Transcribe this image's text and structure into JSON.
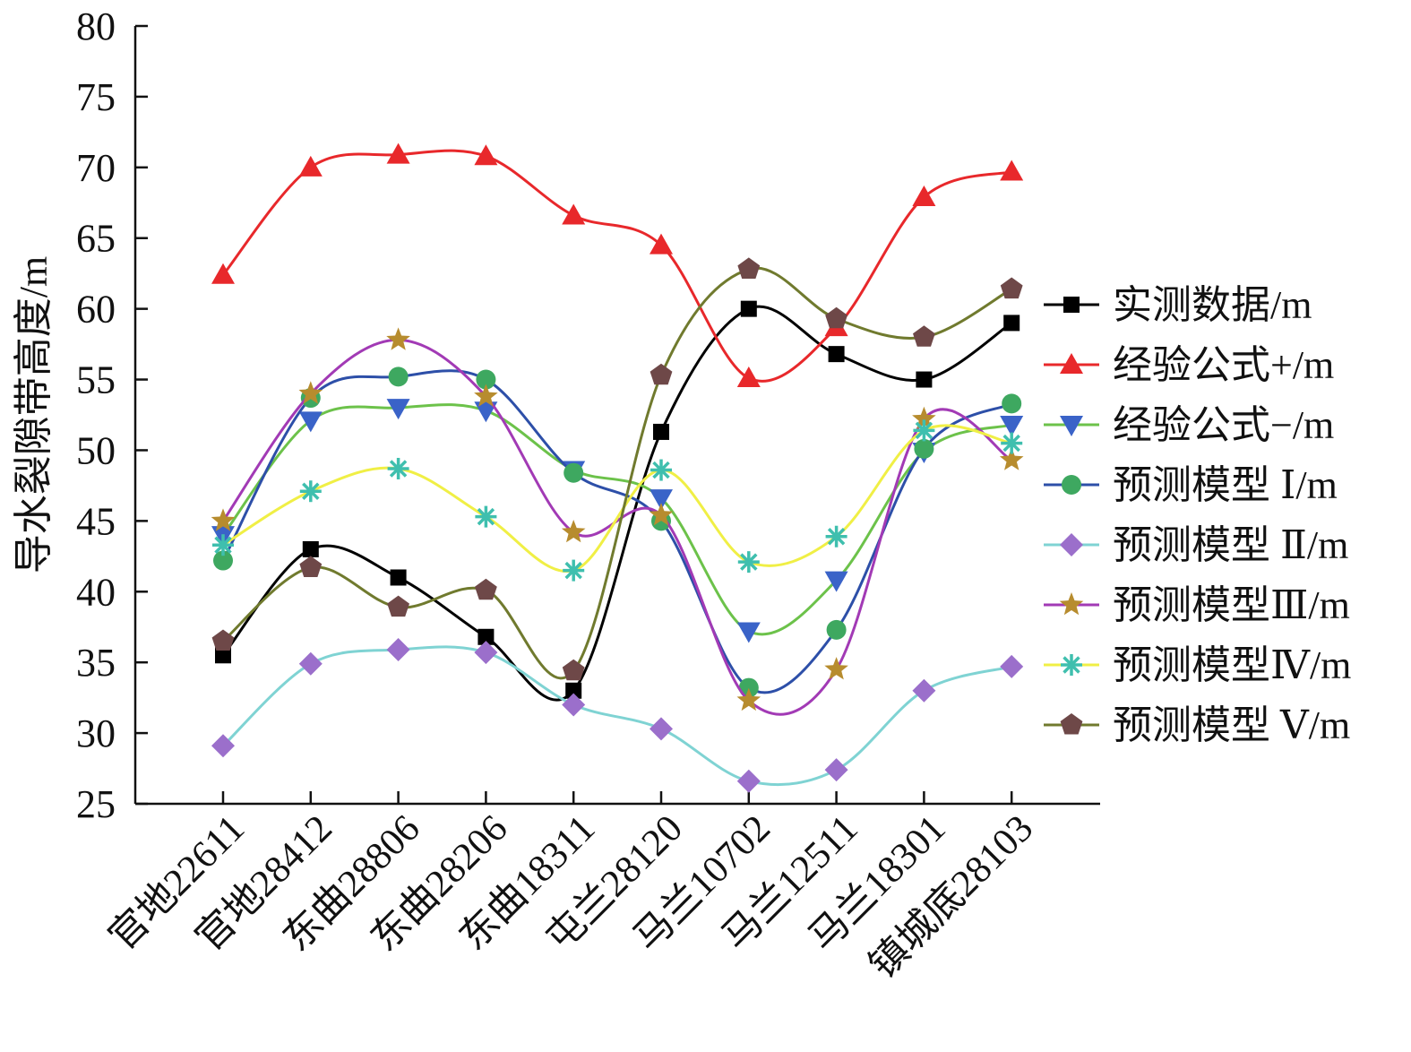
{
  "chart_data": {
    "type": "line",
    "smooth": true,
    "title": "",
    "xlabel": "",
    "ylabel": "导水裂隙带高度/m",
    "ylim": [
      25,
      80
    ],
    "yticks": [
      25,
      30,
      35,
      40,
      45,
      50,
      55,
      60,
      65,
      70,
      75,
      80
    ],
    "categories": [
      "官地22611",
      "官地28412",
      "东曲28806",
      "东曲28206",
      "东曲18311",
      "屯兰28120",
      "马兰10702",
      "马兰12511",
      "马兰18301",
      "镇城底28103"
    ],
    "grid": false,
    "legend_position": "right",
    "series": [
      {
        "name": "实测数据/m",
        "line_color": "#000000",
        "marker": "square",
        "marker_color": "#000000",
        "values": [
          35.5,
          43.0,
          41.0,
          36.8,
          33.0,
          51.3,
          60.0,
          56.8,
          55.0,
          59.0
        ]
      },
      {
        "name": "经验公式+/m",
        "line_color": "#e8282b",
        "marker": "triangle-up",
        "marker_color": "#e8282b",
        "values": [
          62.4,
          70.0,
          70.9,
          70.8,
          66.6,
          64.5,
          55.1,
          58.7,
          67.9,
          69.7
        ]
      },
      {
        "name": "经验公式−/m",
        "line_color": "#6cc24a",
        "marker": "triangle-down",
        "marker_color": "#3a63c8",
        "values": [
          44.0,
          52.1,
          53.0,
          52.8,
          48.6,
          46.6,
          37.2,
          40.8,
          49.9,
          51.8
        ]
      },
      {
        "name": "预测模型 Ⅰ/m",
        "line_color": "#2d4fa8",
        "marker": "circle",
        "marker_color": "#3ea860",
        "values": [
          42.2,
          53.7,
          55.2,
          55.0,
          48.4,
          45.0,
          33.2,
          37.3,
          50.1,
          53.3
        ]
      },
      {
        "name": "预测模型 Ⅱ/m",
        "line_color": "#7fd3d3",
        "marker": "diamond",
        "marker_color": "#9b6fcb",
        "values": [
          29.1,
          34.9,
          35.9,
          35.7,
          32.0,
          30.3,
          26.6,
          27.4,
          33.0,
          34.7
        ]
      },
      {
        "name": "预测模型Ⅲ/m",
        "line_color": "#a23ab5",
        "marker": "star",
        "marker_color": "#b78c2e",
        "values": [
          45.0,
          54.0,
          57.8,
          53.8,
          44.2,
          45.4,
          32.3,
          34.5,
          52.2,
          49.3
        ]
      },
      {
        "name": "预测模型Ⅳ/m",
        "line_color": "#f0ef45",
        "marker": "asterisk",
        "marker_color": "#3fbfae",
        "values": [
          43.3,
          47.1,
          48.7,
          45.3,
          41.5,
          48.6,
          42.1,
          43.9,
          51.4,
          50.5
        ]
      },
      {
        "name": "预测模型 Ⅴ/m",
        "line_color": "#707a2e",
        "marker": "pentagon",
        "marker_color": "#6e4848",
        "values": [
          36.5,
          41.7,
          38.9,
          40.1,
          34.4,
          55.3,
          62.8,
          59.3,
          58.0,
          61.4
        ]
      }
    ]
  }
}
